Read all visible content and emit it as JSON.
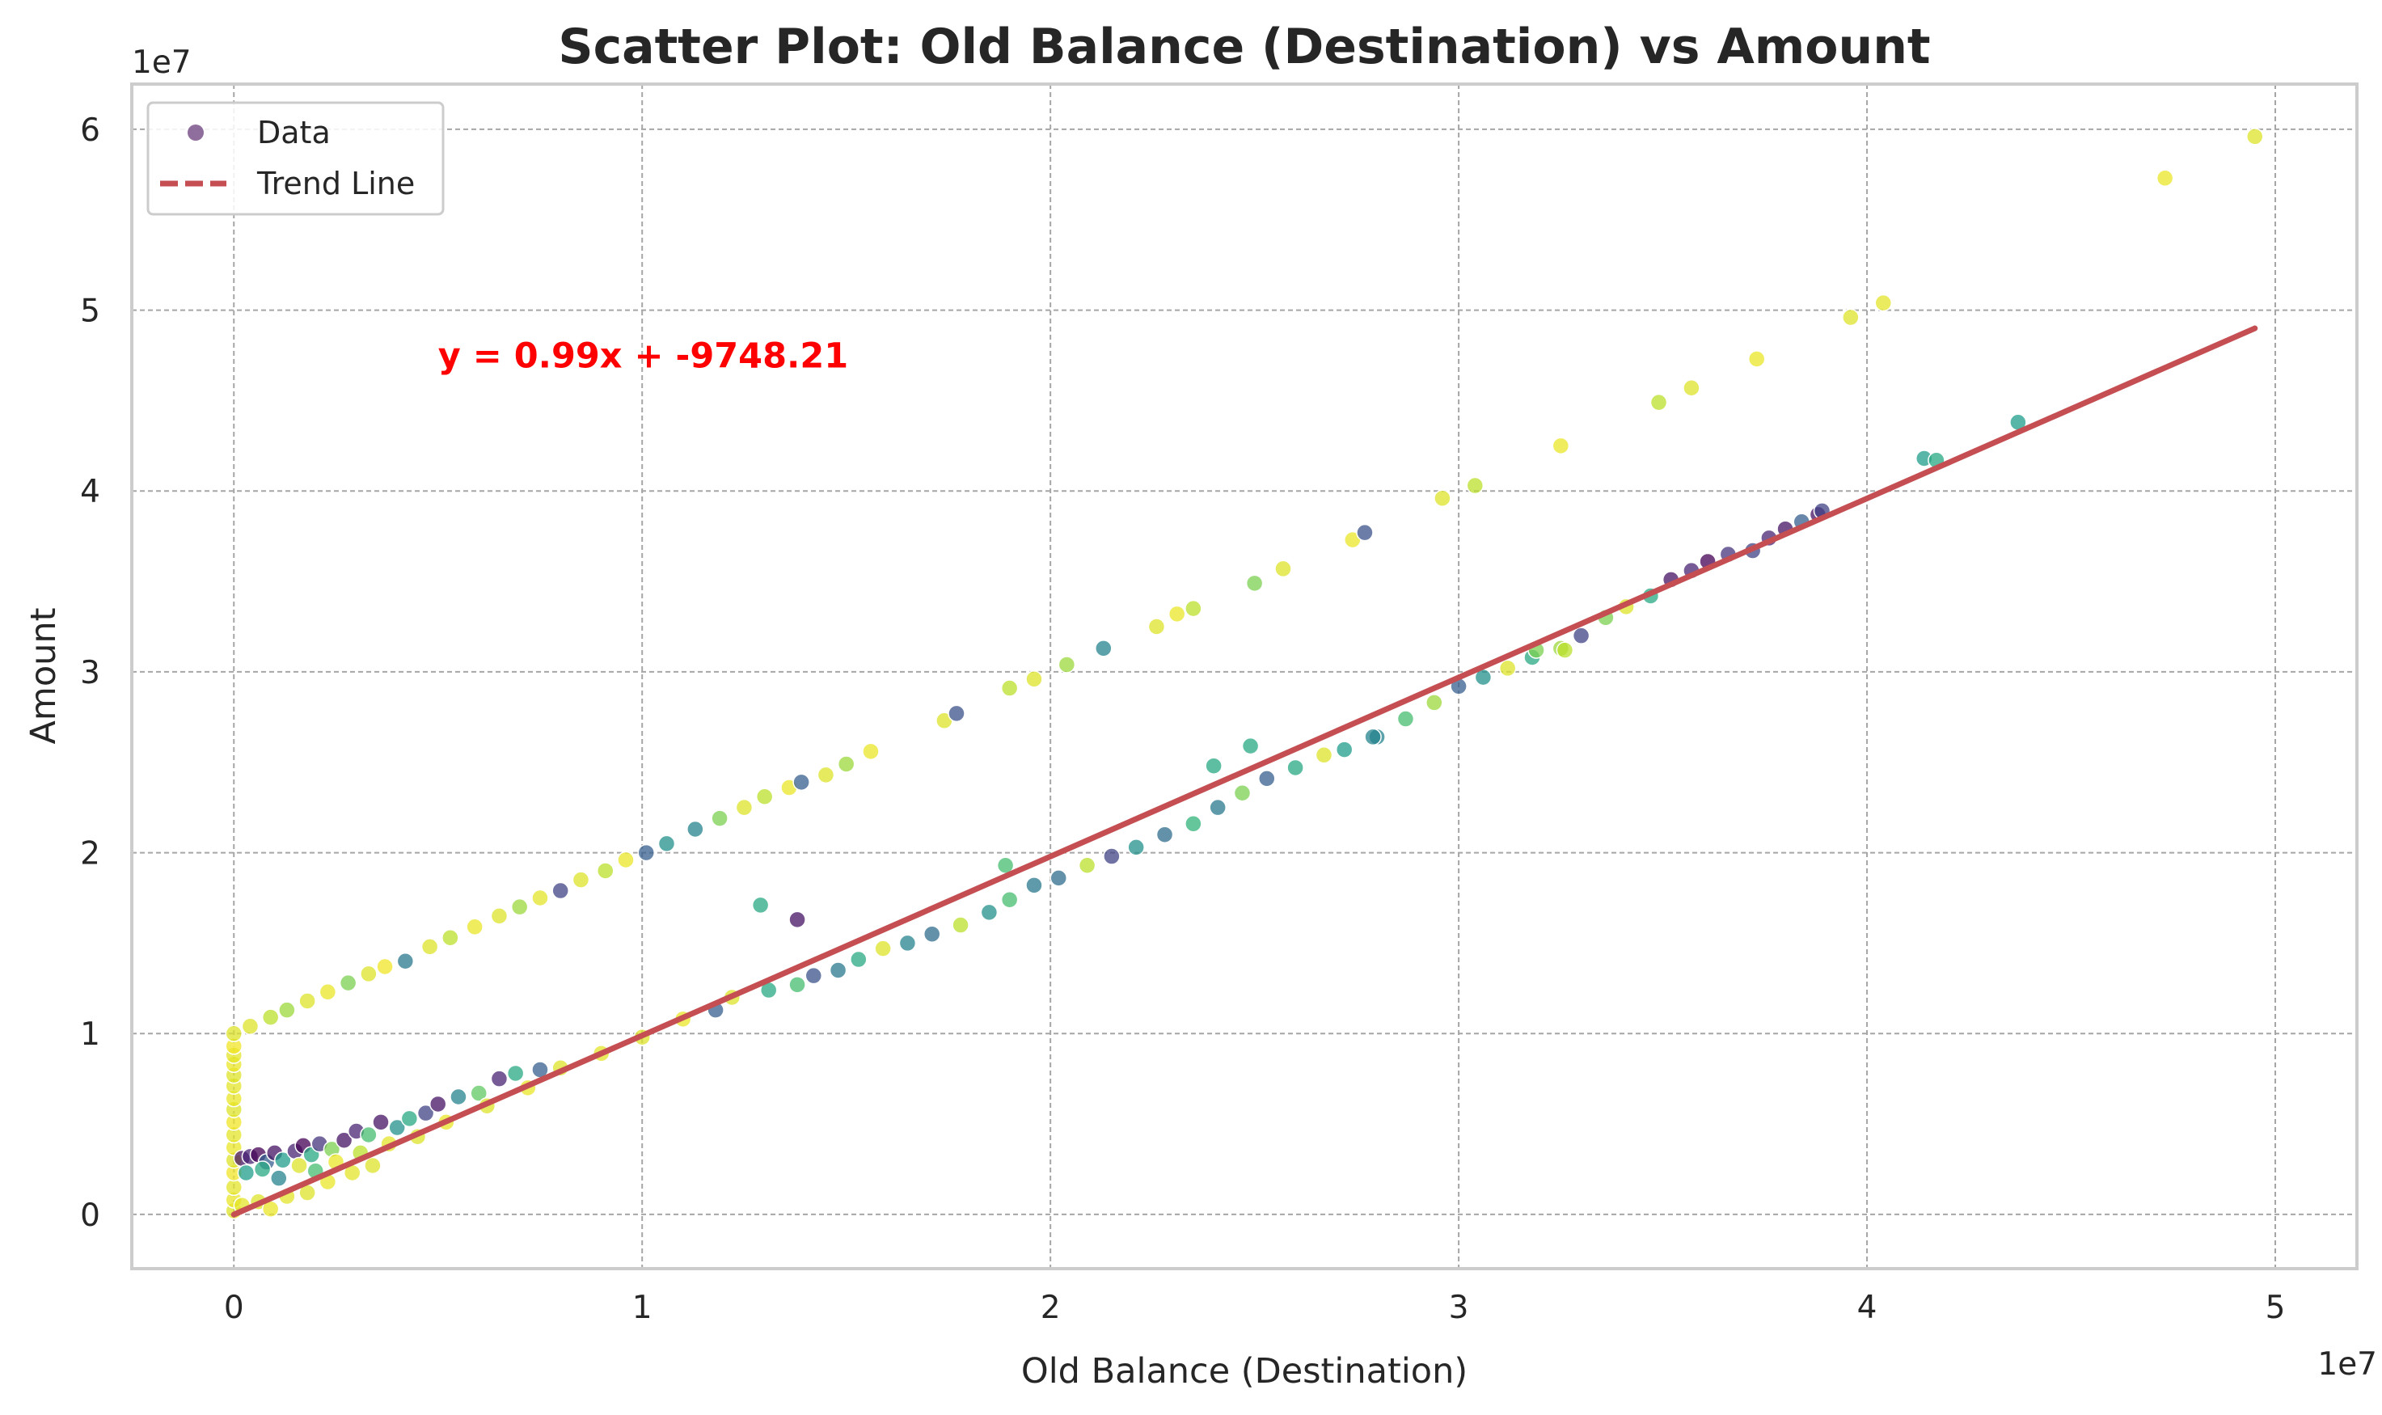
{
  "chart_data": {
    "type": "scatter",
    "title": "Scatter Plot: Old Balance (Destination) vs Amount",
    "xlabel": "Old Balance (Destination)",
    "ylabel": "Amount",
    "x_offset_label": "1e7",
    "y_offset_label": "1e7",
    "xlim": [
      -2500000,
      52000000
    ],
    "ylim": [
      -3000000,
      62500000
    ],
    "x_ticks": [
      0,
      10000000,
      20000000,
      30000000,
      40000000,
      50000000
    ],
    "x_tick_labels": [
      "0",
      "1",
      "2",
      "3",
      "4",
      "5"
    ],
    "y_ticks": [
      0,
      10000000,
      20000000,
      30000000,
      40000000,
      50000000,
      60000000
    ],
    "y_tick_labels": [
      "0",
      "1",
      "2",
      "3",
      "4",
      "5",
      "6"
    ],
    "grid": true,
    "legend_position": "top-left",
    "legend": [
      {
        "label": "Data",
        "marker": "circle",
        "color": "#6a3d7c"
      },
      {
        "label": "Trend Line",
        "marker": "dashed-line",
        "color": "#c44e52"
      }
    ],
    "trend_line": {
      "slope": 0.99,
      "intercept": -9748.21,
      "x_range": [
        0,
        49500000
      ],
      "color": "#c44e52"
    },
    "annotation": {
      "text": "y = 0.99x + -9748.21",
      "x": 5000000,
      "y": 47500000,
      "color": "#ff0000"
    },
    "series": [
      {
        "name": "Data",
        "points": [
          [
            0,
            200000,
            0.95
          ],
          [
            0,
            800000,
            0.97
          ],
          [
            0,
            1500000,
            0.96
          ],
          [
            0,
            2300000,
            0.98
          ],
          [
            0,
            3000000,
            0.95
          ],
          [
            0,
            3700000,
            0.97
          ],
          [
            0,
            4400000,
            0.96
          ],
          [
            0,
            5100000,
            0.98
          ],
          [
            0,
            5800000,
            0.95
          ],
          [
            0,
            6400000,
            0.97
          ],
          [
            0,
            7100000,
            0.96
          ],
          [
            0,
            7700000,
            0.95
          ],
          [
            0,
            8300000,
            0.97
          ],
          [
            0,
            8800000,
            0.96
          ],
          [
            0,
            9300000,
            0.98
          ],
          [
            0,
            10000000,
            0.95
          ],
          [
            400000,
            10400000,
            0.95
          ],
          [
            900000,
            10900000,
            0.9
          ],
          [
            1300000,
            11300000,
            0.85
          ],
          [
            1800000,
            11800000,
            0.95
          ],
          [
            2300000,
            12300000,
            0.97
          ],
          [
            2800000,
            12800000,
            0.8
          ],
          [
            3300000,
            13300000,
            0.95
          ],
          [
            3700000,
            13700000,
            0.98
          ],
          [
            4200000,
            14000000,
            0.4
          ],
          [
            4800000,
            14800000,
            0.95
          ],
          [
            5300000,
            15300000,
            0.9
          ],
          [
            5900000,
            15900000,
            0.97
          ],
          [
            6500000,
            16500000,
            0.95
          ],
          [
            7000000,
            17000000,
            0.85
          ],
          [
            7500000,
            17500000,
            0.96
          ],
          [
            8000000,
            17900000,
            0.2
          ],
          [
            8500000,
            18500000,
            0.95
          ],
          [
            9100000,
            19000000,
            0.9
          ],
          [
            9600000,
            19600000,
            0.97
          ],
          [
            10100000,
            20000000,
            0.3
          ],
          [
            10600000,
            20500000,
            0.5
          ],
          [
            11300000,
            21300000,
            0.45
          ],
          [
            11900000,
            21900000,
            0.8
          ],
          [
            12500000,
            22500000,
            0.95
          ],
          [
            13000000,
            23100000,
            0.9
          ],
          [
            13600000,
            23600000,
            0.97
          ],
          [
            13900000,
            23900000,
            0.3
          ],
          [
            14500000,
            24300000,
            0.95
          ],
          [
            15000000,
            24900000,
            0.85
          ],
          [
            15600000,
            25600000,
            0.97
          ],
          [
            17400000,
            27300000,
            0.95
          ],
          [
            17700000,
            27700000,
            0.25
          ],
          [
            19000000,
            29100000,
            0.9
          ],
          [
            19600000,
            29600000,
            0.95
          ],
          [
            20400000,
            30400000,
            0.85
          ],
          [
            21300000,
            31300000,
            0.45
          ],
          [
            22600000,
            32500000,
            0.95
          ],
          [
            23100000,
            33200000,
            0.97
          ],
          [
            23500000,
            33500000,
            0.9
          ],
          [
            25000000,
            34900000,
            0.8
          ],
          [
            25700000,
            35700000,
            0.95
          ],
          [
            27400000,
            37300000,
            0.97
          ],
          [
            27700000,
            37700000,
            0.25
          ],
          [
            29600000,
            39600000,
            0.95
          ],
          [
            30400000,
            40300000,
            0.9
          ],
          [
            32500000,
            42500000,
            0.97
          ],
          [
            34900000,
            44900000,
            0.9
          ],
          [
            35700000,
            45700000,
            0.95
          ],
          [
            37300000,
            47300000,
            0.97
          ],
          [
            39600000,
            49600000,
            0.95
          ],
          [
            40400000,
            50400000,
            0.96
          ],
          [
            47300000,
            57300000,
            0.97
          ],
          [
            49500000,
            59600000,
            0.95
          ],
          [
            200000,
            3100000,
            0.05
          ],
          [
            400000,
            3200000,
            0.1
          ],
          [
            600000,
            3300000,
            0.0
          ],
          [
            800000,
            2900000,
            0.3
          ],
          [
            1000000,
            3400000,
            0.05
          ],
          [
            1200000,
            3000000,
            0.55
          ],
          [
            1500000,
            3500000,
            0.1
          ],
          [
            1700000,
            3800000,
            0.0
          ],
          [
            1900000,
            3300000,
            0.6
          ],
          [
            2100000,
            3900000,
            0.15
          ],
          [
            2400000,
            3600000,
            0.8
          ],
          [
            2700000,
            4100000,
            0.05
          ],
          [
            3000000,
            4600000,
            0.1
          ],
          [
            3300000,
            4400000,
            0.7
          ],
          [
            3600000,
            5100000,
            0.05
          ],
          [
            4000000,
            4800000,
            0.5
          ],
          [
            4300000,
            5300000,
            0.6
          ],
          [
            4700000,
            5600000,
            0.2
          ],
          [
            5000000,
            6100000,
            0.05
          ],
          [
            5500000,
            6500000,
            0.45
          ],
          [
            6000000,
            6700000,
            0.75
          ],
          [
            6500000,
            7500000,
            0.1
          ],
          [
            6900000,
            7800000,
            0.6
          ],
          [
            7500000,
            8000000,
            0.3
          ],
          [
            300000,
            2300000,
            0.55
          ],
          [
            700000,
            2500000,
            0.6
          ],
          [
            1100000,
            2000000,
            0.45
          ],
          [
            1600000,
            2700000,
            0.95
          ],
          [
            2000000,
            2400000,
            0.7
          ],
          [
            2500000,
            2900000,
            0.97
          ],
          [
            3100000,
            3400000,
            0.9
          ],
          [
            3800000,
            3900000,
            0.96
          ],
          [
            4500000,
            4300000,
            0.95
          ],
          [
            5200000,
            5100000,
            0.97
          ],
          [
            6200000,
            6000000,
            0.95
          ],
          [
            7200000,
            7000000,
            0.97
          ],
          [
            200000,
            500000,
            0.96
          ],
          [
            600000,
            700000,
            0.95
          ],
          [
            900000,
            300000,
            0.97
          ],
          [
            1300000,
            1000000,
            0.96
          ],
          [
            1800000,
            1200000,
            0.95
          ],
          [
            2300000,
            1800000,
            0.97
          ],
          [
            2900000,
            2300000,
            0.96
          ],
          [
            3400000,
            2700000,
            0.95
          ],
          [
            8000000,
            8100000,
            0.95
          ],
          [
            9000000,
            8900000,
            0.96
          ],
          [
            10000000,
            9800000,
            0.95
          ],
          [
            11000000,
            10800000,
            0.97
          ],
          [
            11800000,
            11300000,
            0.3
          ],
          [
            12200000,
            12000000,
            0.95
          ],
          [
            13100000,
            12400000,
            0.6
          ],
          [
            13800000,
            12700000,
            0.7
          ],
          [
            14200000,
            13200000,
            0.25
          ],
          [
            14800000,
            13500000,
            0.4
          ],
          [
            15300000,
            14100000,
            0.6
          ],
          [
            15900000,
            14700000,
            0.95
          ],
          [
            16500000,
            15000000,
            0.45
          ],
          [
            17100000,
            15500000,
            0.35
          ],
          [
            17800000,
            16000000,
            0.9
          ],
          [
            18500000,
            16700000,
            0.5
          ],
          [
            19000000,
            17400000,
            0.7
          ],
          [
            19600000,
            18200000,
            0.4
          ],
          [
            20200000,
            18600000,
            0.35
          ],
          [
            20900000,
            19300000,
            0.9
          ],
          [
            21500000,
            19800000,
            0.2
          ],
          [
            22100000,
            20300000,
            0.5
          ],
          [
            22800000,
            21000000,
            0.35
          ],
          [
            23500000,
            21600000,
            0.65
          ],
          [
            24100000,
            22500000,
            0.4
          ],
          [
            24700000,
            23300000,
            0.8
          ],
          [
            25300000,
            24100000,
            0.3
          ],
          [
            26000000,
            24700000,
            0.6
          ],
          [
            26700000,
            25400000,
            0.95
          ],
          [
            27200000,
            25700000,
            0.55
          ],
          [
            28000000,
            26400000,
            0.45
          ],
          [
            28700000,
            27400000,
            0.7
          ],
          [
            29400000,
            28300000,
            0.85
          ],
          [
            30000000,
            29200000,
            0.3
          ],
          [
            30600000,
            29700000,
            0.5
          ],
          [
            31200000,
            30200000,
            0.95
          ],
          [
            31800000,
            30800000,
            0.6
          ],
          [
            32500000,
            31300000,
            0.85
          ],
          [
            33000000,
            32000000,
            0.2
          ],
          [
            33600000,
            33000000,
            0.8
          ],
          [
            34100000,
            33600000,
            0.95
          ],
          [
            34700000,
            34200000,
            0.6
          ],
          [
            35200000,
            35100000,
            0.05
          ],
          [
            35700000,
            35600000,
            0.1
          ],
          [
            36100000,
            36100000,
            0.0
          ],
          [
            36600000,
            36500000,
            0.15
          ],
          [
            37200000,
            36700000,
            0.2
          ],
          [
            37600000,
            37400000,
            0.1
          ],
          [
            38000000,
            37900000,
            0.05
          ],
          [
            38400000,
            38300000,
            0.3
          ],
          [
            38800000,
            38700000,
            0.05
          ],
          [
            38900000,
            38900000,
            0.2
          ],
          [
            41400000,
            41800000,
            0.55
          ],
          [
            41700000,
            41700000,
            0.6
          ],
          [
            43700000,
            43800000,
            0.55
          ],
          [
            12900000,
            17100000,
            0.6
          ],
          [
            13800000,
            16300000,
            0.05
          ],
          [
            18900000,
            19300000,
            0.7
          ],
          [
            24000000,
            24800000,
            0.6
          ],
          [
            24900000,
            25900000,
            0.6
          ],
          [
            27900000,
            26400000,
            0.45
          ],
          [
            31900000,
            31200000,
            0.8
          ],
          [
            32600000,
            31200000,
            0.9
          ]
        ]
      }
    ]
  }
}
